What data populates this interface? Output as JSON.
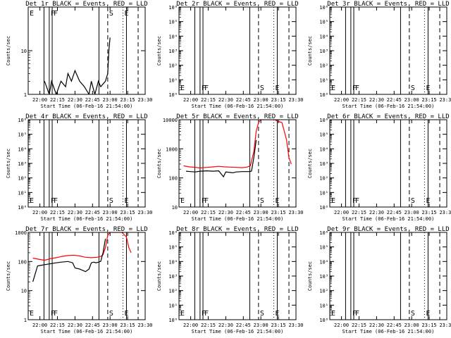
{
  "figure": {
    "panel_layout": "3x3 grid",
    "x_ticks": [
      "22:00",
      "22:15",
      "22:30",
      "22:45",
      "23:00",
      "23:15",
      "23:30"
    ],
    "x_range_minutes": [
      -4,
      96
    ],
    "x_tick_minutes": [
      6,
      21,
      36,
      51,
      66,
      81,
      96
    ],
    "xlabel": "Start Time (06-Feb-16 21:54:00)",
    "ylabel": "Counts/sec",
    "colors": {
      "events": "#000000",
      "lld": "#ff0000",
      "axes": "#000000"
    },
    "vertical_markers": {
      "E_solid": [
        9.5,
        80
      ],
      "F_solid": [
        14,
        16.5
      ],
      "S_solid": [
        56.5
      ],
      "S_dashed": [
        64
      ],
      "dotted": [
        77
      ],
      "end_dashed": [
        90
      ]
    }
  },
  "chart_data": [
    {
      "id": "1",
      "type": "line",
      "title": "Det 1r BLACK = Events, RED = LLD",
      "xlabel": "Start Time (06-Feb-16 21:54:00)",
      "ylabel": "Counts/sec",
      "yscale": "log",
      "ylim": [
        1,
        100
      ],
      "ytick_labels": [
        "1",
        "10"
      ],
      "ytick_values": [
        1,
        10
      ],
      "marker_labels": [
        "E",
        "F",
        "F",
        "S",
        "E"
      ],
      "series": [
        {
          "name": "Events",
          "color": "#000000",
          "x": [
            10,
            14,
            16,
            20,
            24,
            28,
            30,
            33,
            36,
            40,
            44,
            48,
            50,
            53,
            56,
            58,
            62,
            64,
            65,
            66
          ],
          "y": [
            2,
            1,
            2,
            1,
            2,
            1.5,
            3,
            2,
            3.5,
            2,
            1.5,
            1,
            2,
            1,
            2,
            1.5,
            2,
            3,
            10,
            20
          ]
        }
      ]
    },
    {
      "id": "2",
      "type": "line",
      "title": "Det 2r BLACK = Events, RED = LLD",
      "xlabel": "Start Time (06-Feb-16 21:54:00)",
      "ylabel": "Counts/sec",
      "yscale": "log",
      "ylim": [
        1,
        1000000
      ],
      "ytick_labels": [
        "10⁰",
        "10¹",
        "10²",
        "10³",
        "10⁴",
        "10⁵",
        "10⁶"
      ],
      "ytick_values": [
        1,
        10,
        100,
        1000,
        10000,
        100000,
        1000000
      ],
      "marker_labels": [
        "E",
        "F",
        "F",
        "S",
        "E"
      ],
      "series": []
    },
    {
      "id": "3",
      "type": "line",
      "title": "Det 3r BLACK = Events, RED = LLD",
      "xlabel": "Start Time (06-Feb-16 21:54:00)",
      "ylabel": "Counts/sec",
      "yscale": "log",
      "ylim": [
        1,
        1000000
      ],
      "ytick_labels": [
        "10⁰",
        "10¹",
        "10²",
        "10³",
        "10⁴",
        "10⁵",
        "10⁶"
      ],
      "ytick_values": [
        1,
        10,
        100,
        1000,
        10000,
        100000,
        1000000
      ],
      "marker_labels": [
        "E",
        "F",
        "F",
        "S",
        "E"
      ],
      "series": []
    },
    {
      "id": "4",
      "type": "line",
      "title": "Det 4r BLACK = Events, RED = LLD",
      "xlabel": "Start Time (06-Feb-16 21:54:00)",
      "ylabel": "Counts/sec",
      "yscale": "log",
      "ylim": [
        1,
        1000000
      ],
      "ytick_labels": [
        "10⁰",
        "10¹",
        "10²",
        "10³",
        "10⁴",
        "10⁵",
        "10⁶"
      ],
      "ytick_values": [
        1,
        10,
        100,
        1000,
        10000,
        100000,
        1000000
      ],
      "marker_labels": [
        "E",
        "F",
        "F",
        "S",
        "E"
      ],
      "series": []
    },
    {
      "id": "5",
      "type": "line",
      "title": "Det 5r BLACK = Events, RED = LLD",
      "xlabel": "Start Time (06-Feb-16 21:54:00)",
      "ylabel": "Counts/sec",
      "yscale": "log",
      "ylim": [
        10,
        10000
      ],
      "ytick_labels": [
        "10",
        "100",
        "1000",
        "10000"
      ],
      "ytick_values": [
        10,
        100,
        1000,
        10000
      ],
      "marker_labels": [
        "E",
        "F",
        "F",
        "S",
        "E"
      ],
      "series": [
        {
          "name": "LLD",
          "color": "#ff0000",
          "x": [
            0,
            5,
            10,
            14,
            20,
            25,
            30,
            35,
            40,
            45,
            50,
            54,
            57,
            60,
            62,
            64,
            66,
            68,
            70,
            75,
            78,
            80,
            84,
            88,
            90,
            92
          ],
          "y": [
            260,
            240,
            230,
            220,
            230,
            240,
            250,
            240,
            235,
            230,
            225,
            235,
            260,
            800,
            4000,
            8000,
            10000,
            10000,
            10000,
            10000,
            10000,
            9000,
            8000,
            2000,
            500,
            300
          ]
        },
        {
          "name": "Events",
          "color": "#000000",
          "x": [
            2,
            6,
            10,
            14,
            20,
            25,
            30,
            34,
            36,
            42,
            45,
            50,
            56,
            58,
            60,
            62
          ],
          "y": [
            170,
            165,
            160,
            170,
            175,
            170,
            175,
            110,
            160,
            150,
            160,
            165,
            165,
            170,
            500,
            2000
          ]
        }
      ]
    },
    {
      "id": "6",
      "type": "line",
      "title": "Det 6r BLACK = Events, RED = LLD",
      "xlabel": "Start Time (06-Feb-16 21:54:00)",
      "ylabel": "Counts/sec",
      "yscale": "log",
      "ylim": [
        1,
        1000000
      ],
      "ytick_labels": [
        "10⁰",
        "10¹",
        "10²",
        "10³",
        "10⁴",
        "10⁵",
        "10⁶"
      ],
      "ytick_values": [
        1,
        10,
        100,
        1000,
        10000,
        100000,
        1000000
      ],
      "marker_labels": [
        "E",
        "F",
        "F",
        "S",
        "E"
      ],
      "series": []
    },
    {
      "id": "7",
      "type": "line",
      "title": "Det 7r BLACK = Events, RED = LLD",
      "xlabel": "Start Time (06-Feb-16 21:54:00)",
      "ylabel": "Counts/sec",
      "yscale": "log",
      "ylim": [
        1,
        1000
      ],
      "ytick_labels": [
        "1",
        "10",
        "100",
        "1000"
      ],
      "ytick_values": [
        1,
        10,
        100,
        1000
      ],
      "marker_labels": [
        "E",
        "F",
        "F",
        "S",
        "E"
      ],
      "series": [
        {
          "name": "LLD",
          "color": "#ff0000",
          "x": [
            0,
            5,
            10,
            15,
            20,
            25,
            30,
            35,
            40,
            45,
            50,
            55,
            58,
            60,
            62,
            64,
            66,
            68,
            70,
            72,
            76,
            80,
            82,
            84
          ],
          "y": [
            130,
            120,
            110,
            125,
            135,
            150,
            160,
            165,
            155,
            140,
            135,
            140,
            150,
            170,
            300,
            800,
            1000,
            1000,
            1000,
            1000,
            1000,
            700,
            300,
            200
          ]
        },
        {
          "name": "Events",
          "color": "#000000",
          "x": [
            0,
            4,
            8,
            12,
            16,
            20,
            24,
            30,
            34,
            36,
            40,
            45,
            48,
            50,
            52,
            54,
            56,
            58,
            60,
            62
          ],
          "y": [
            20,
            70,
            75,
            80,
            85,
            90,
            95,
            100,
            90,
            60,
            55,
            45,
            55,
            90,
            95,
            90,
            95,
            100,
            200,
            600
          ]
        }
      ]
    },
    {
      "id": "8",
      "type": "line",
      "title": "Det 8r BLACK = Events, RED = LLD",
      "xlabel": "Start Time (06-Feb-16 21:54:00)",
      "ylabel": "Counts/sec",
      "yscale": "log",
      "ylim": [
        1,
        1000000
      ],
      "ytick_labels": [
        "10⁰",
        "10¹",
        "10²",
        "10³",
        "10⁴",
        "10⁵",
        "10⁶"
      ],
      "ytick_values": [
        1,
        10,
        100,
        1000,
        10000,
        100000,
        1000000
      ],
      "marker_labels": [
        "E",
        "F",
        "F",
        "S",
        "E"
      ],
      "series": []
    },
    {
      "id": "9",
      "type": "line",
      "title": "Det 9r BLACK = Events, RED = LLD",
      "xlabel": "Start Time (06-Feb-16 21:54:00)",
      "ylabel": "Counts/sec",
      "yscale": "log",
      "ylim": [
        1,
        1000000
      ],
      "ytick_labels": [
        "10⁰",
        "10¹",
        "10²",
        "10³",
        "10⁴",
        "10⁵",
        "10⁶"
      ],
      "ytick_values": [
        1,
        10,
        100,
        1000,
        10000,
        100000,
        1000000
      ],
      "marker_labels": [
        "E",
        "F",
        "F",
        "S",
        "E"
      ],
      "series": []
    }
  ]
}
